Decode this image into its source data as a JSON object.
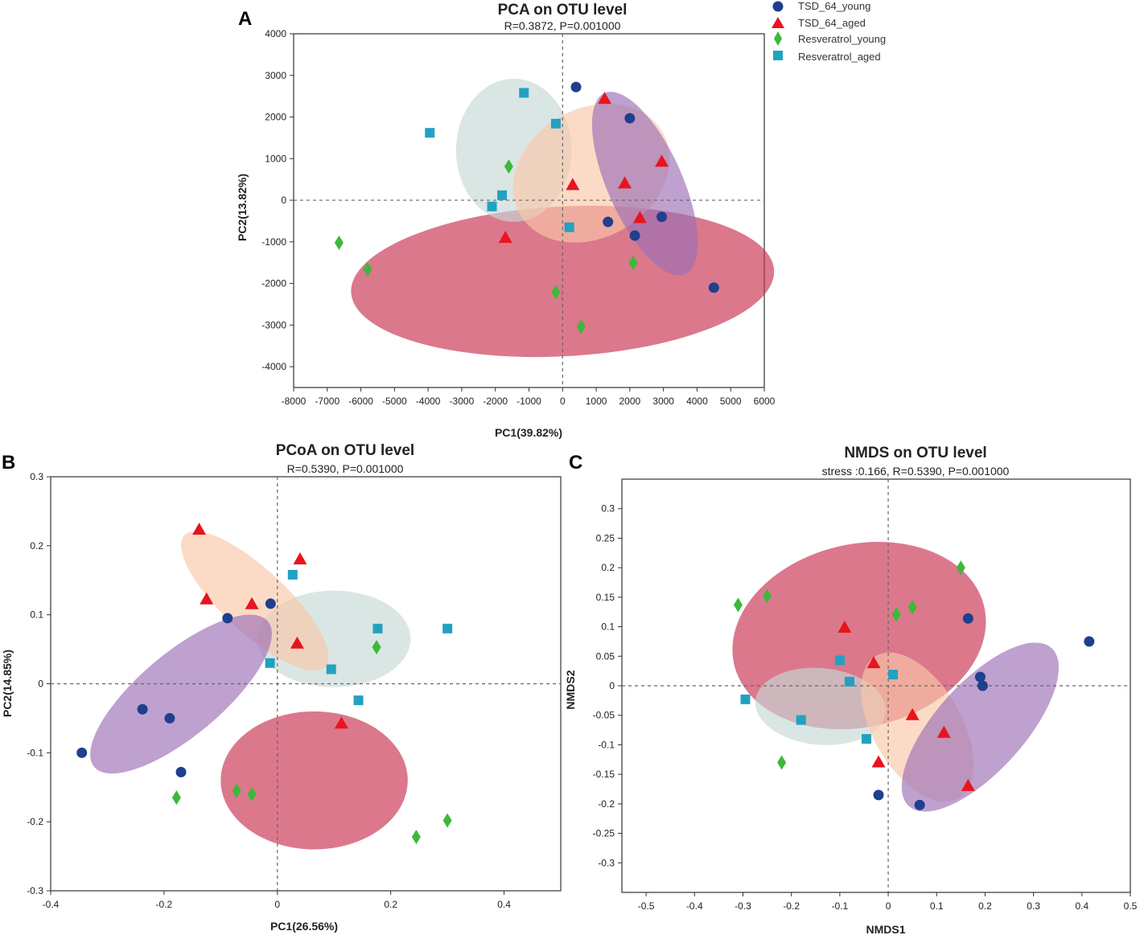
{
  "legend": [
    {
      "name": "TSD_64_young",
      "shape": "circle",
      "color": "#1f3f8f"
    },
    {
      "name": "TSD_64_aged",
      "shape": "triangle",
      "color": "#e8141e"
    },
    {
      "name": "Resveratrol_young",
      "shape": "diamond",
      "color": "#3cb83a"
    },
    {
      "name": "Resveratrol_aged",
      "shape": "square",
      "color": "#22a2c0"
    }
  ],
  "ellipse_colors": {
    "TSD_64_young": "#9b6fb5",
    "TSD_64_aged": "#fbc8a8",
    "Resveratrol_young": "#c8304f",
    "Resveratrol_aged": "#c6d8d6"
  },
  "chart_data": [
    {
      "type": "scatter",
      "panel_label": "A",
      "title": "PCA on OTU level",
      "subtitle": "R=0.3872, P=0.001000",
      "xlabel": "PC1(39.82%)",
      "ylabel": "PC2(13.82%)",
      "xlim": [
        -8000,
        6000
      ],
      "ylim": [
        -4500,
        4000
      ],
      "xticks": [
        -8000,
        -7000,
        -6000,
        -5000,
        -4000,
        -3000,
        -2000,
        -1000,
        0,
        1000,
        2000,
        3000,
        4000,
        5000,
        6000
      ],
      "yticks": [
        -4000,
        -3000,
        -2000,
        -1000,
        0,
        1000,
        2000,
        3000,
        4000
      ],
      "ellipses": [
        {
          "group": "Resveratrol_young",
          "cx": 0,
          "cy": -1950,
          "rx": 6300,
          "ry": 1800,
          "angle": 3
        },
        {
          "group": "Resveratrol_aged",
          "cx": -1450,
          "cy": 1200,
          "rx": 1720,
          "ry": 1720,
          "angle": 0
        },
        {
          "group": "TSD_64_aged",
          "cx": 850,
          "cy": 650,
          "rx": 2450,
          "ry": 1550,
          "angle": 30
        },
        {
          "group": "TSD_64_young",
          "cx": 2450,
          "cy": 400,
          "rx": 2950,
          "ry": 900,
          "angle": -66
        }
      ],
      "series": [
        {
          "name": "TSD_64_young",
          "points": [
            [
              400,
              2720
            ],
            [
              2000,
              1970
            ],
            [
              1350,
              -520
            ],
            [
              2150,
              -850
            ],
            [
              2950,
              -400
            ],
            [
              4500,
              -2100
            ]
          ]
        },
        {
          "name": "TSD_64_aged",
          "points": [
            [
              1250,
              2430
            ],
            [
              2950,
              920
            ],
            [
              1850,
              400
            ],
            [
              300,
              360
            ],
            [
              2300,
              -430
            ],
            [
              -1700,
              -910
            ]
          ]
        },
        {
          "name": "Resveratrol_young",
          "points": [
            [
              -1600,
              810
            ],
            [
              -6650,
              -1020
            ],
            [
              -5800,
              -1660
            ],
            [
              2100,
              -1500
            ],
            [
              -200,
              -2210
            ],
            [
              550,
              -3040
            ]
          ]
        },
        {
          "name": "Resveratrol_aged",
          "points": [
            [
              -1150,
              2580
            ],
            [
              -3950,
              1620
            ],
            [
              -200,
              1840
            ],
            [
              -1800,
              120
            ],
            [
              -2100,
              -150
            ],
            [
              200,
              -650
            ]
          ]
        }
      ]
    },
    {
      "type": "scatter",
      "panel_label": "B",
      "title": "PCoA on OTU level",
      "subtitle": "R=0.5390, P=0.001000",
      "xlabel": "PC1(26.56%)",
      "ylabel": "PC2(14.85%)",
      "xlim": [
        -0.4,
        0.5
      ],
      "ylim": [
        -0.3,
        0.3
      ],
      "xticks": [
        -0.4,
        -0.2,
        0,
        0.2,
        0.4
      ],
      "yticks": [
        -0.3,
        -0.2,
        -0.1,
        0,
        0.1,
        0.2,
        0.3
      ],
      "ellipses": [
        {
          "group": "Resveratrol_young",
          "cx": 0.065,
          "cy": -0.14,
          "rx": 0.165,
          "ry": 0.1,
          "angle": 0
        },
        {
          "group": "Resveratrol_aged",
          "cx": 0.1,
          "cy": 0.065,
          "rx": 0.135,
          "ry": 0.07,
          "angle": 0
        },
        {
          "group": "TSD_64_aged",
          "cx": -0.04,
          "cy": 0.12,
          "rx": 0.17,
          "ry": 0.046,
          "angle": -43
        },
        {
          "group": "TSD_64_young",
          "cx": -0.17,
          "cy": -0.015,
          "rx": 0.2,
          "ry": 0.06,
          "angle": 40
        }
      ],
      "series": [
        {
          "name": "TSD_64_young",
          "points": [
            [
              -0.345,
              -0.1
            ],
            [
              -0.238,
              -0.037
            ],
            [
              -0.19,
              -0.05
            ],
            [
              -0.17,
              -0.128
            ],
            [
              -0.088,
              0.095
            ],
            [
              -0.012,
              0.116
            ]
          ]
        },
        {
          "name": "TSD_64_aged",
          "points": [
            [
              -0.138,
              0.223
            ],
            [
              -0.125,
              0.122
            ],
            [
              -0.045,
              0.115
            ],
            [
              0.04,
              0.18
            ],
            [
              0.035,
              0.058
            ],
            [
              0.113,
              -0.058
            ]
          ]
        },
        {
          "name": "Resveratrol_young",
          "points": [
            [
              0.175,
              0.053
            ],
            [
              -0.178,
              -0.165
            ],
            [
              -0.072,
              -0.155
            ],
            [
              -0.045,
              -0.16
            ],
            [
              0.245,
              -0.222
            ],
            [
              0.3,
              -0.198
            ]
          ]
        },
        {
          "name": "Resveratrol_aged",
          "points": [
            [
              0.027,
              0.158
            ],
            [
              0.177,
              0.08
            ],
            [
              0.3,
              0.08
            ],
            [
              -0.013,
              0.03
            ],
            [
              0.095,
              0.021
            ],
            [
              0.143,
              -0.024
            ]
          ]
        }
      ]
    },
    {
      "type": "scatter",
      "panel_label": "C",
      "title": "NMDS on OTU level",
      "subtitle": "stress :0.166, R=0.5390, P=0.001000",
      "xlabel": "NMDS1",
      "ylabel": "NMDS2",
      "xlim": [
        -0.55,
        0.5
      ],
      "ylim": [
        -0.35,
        0.35
      ],
      "xticks": [
        -0.5,
        -0.4,
        -0.3,
        -0.2,
        -0.1,
        0,
        0.1,
        0.2,
        0.3,
        0.4,
        0.5
      ],
      "yticks": [
        -0.3,
        -0.25,
        -0.2,
        -0.15,
        -0.1,
        -0.05,
        0,
        0.05,
        0.1,
        0.15,
        0.2,
        0.25,
        0.3
      ],
      "ellipses": [
        {
          "group": "Resveratrol_young",
          "cx": -0.06,
          "cy": 0.085,
          "rx": 0.265,
          "ry": 0.155,
          "angle": 13
        },
        {
          "group": "Resveratrol_aged",
          "cx": -0.14,
          "cy": -0.035,
          "rx": 0.135,
          "ry": 0.065,
          "angle": -5
        },
        {
          "group": "TSD_64_aged",
          "cx": 0.06,
          "cy": -0.07,
          "rx": 0.17,
          "ry": 0.075,
          "angle": -60
        },
        {
          "group": "TSD_64_young",
          "cx": 0.19,
          "cy": -0.07,
          "rx": 0.22,
          "ry": 0.075,
          "angle": 48
        }
      ],
      "series": [
        {
          "name": "TSD_64_young",
          "points": [
            [
              0.165,
              0.114
            ],
            [
              0.415,
              0.075
            ],
            [
              0.19,
              0.015
            ],
            [
              0.195,
              0.0
            ],
            [
              -0.02,
              -0.185
            ],
            [
              0.065,
              -0.202
            ]
          ]
        },
        {
          "name": "TSD_64_aged",
          "points": [
            [
              -0.09,
              0.098
            ],
            [
              -0.03,
              0.038
            ],
            [
              0.05,
              -0.05
            ],
            [
              0.115,
              -0.08
            ],
            [
              -0.02,
              -0.13
            ],
            [
              0.165,
              -0.17
            ]
          ]
        },
        {
          "name": "Resveratrol_young",
          "points": [
            [
              -0.31,
              0.137
            ],
            [
              -0.25,
              0.152
            ],
            [
              0.15,
              0.2
            ],
            [
              0.017,
              0.121
            ],
            [
              0.05,
              0.133
            ],
            [
              -0.22,
              -0.13
            ]
          ]
        },
        {
          "name": "Resveratrol_aged",
          "points": [
            [
              -0.1,
              0.043
            ],
            [
              -0.08,
              0.007
            ],
            [
              0.01,
              0.019
            ],
            [
              -0.295,
              -0.023
            ],
            [
              -0.18,
              -0.058
            ],
            [
              -0.045,
              -0.09
            ]
          ]
        }
      ]
    }
  ]
}
